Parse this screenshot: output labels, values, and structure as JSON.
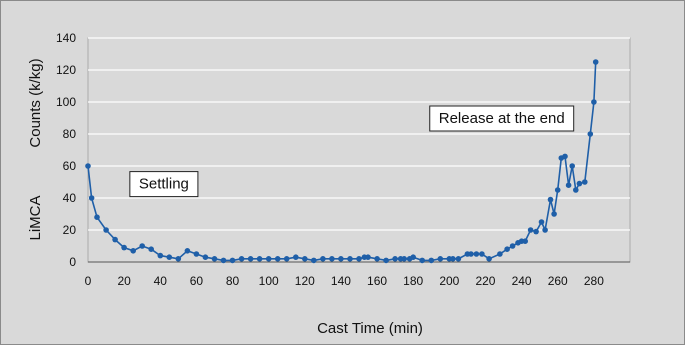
{
  "chart_data": {
    "type": "line",
    "title": "",
    "xlabel": "Cast Time (min)",
    "ylabel_left": "LiMCA",
    "ylabel_right": "Counts (k/kg)",
    "xlim": [
      0,
      300
    ],
    "ylim": [
      0,
      140
    ],
    "xticks": [
      "0",
      "20",
      "40",
      "60",
      "80",
      "100",
      "120",
      "140",
      "160",
      "180",
      "200",
      "220",
      "240",
      "260",
      "280"
    ],
    "yticks": [
      "0",
      "20",
      "40",
      "60",
      "80",
      "100",
      "120",
      "140"
    ],
    "grid": "horizontal",
    "colors": {
      "series": "#1f5fa8",
      "grid": "#ffffff",
      "plot_bg": "#d9d9d9"
    },
    "annotations": [
      {
        "text": "Settling",
        "x": 42,
        "y": 49
      },
      {
        "text": "Release at the end",
        "x": 229,
        "y": 90
      }
    ],
    "series": [
      {
        "name": "",
        "x": [
          0,
          2,
          5,
          10,
          15,
          20,
          25,
          30,
          35,
          40,
          45,
          50,
          55,
          60,
          65,
          70,
          75,
          80,
          85,
          90,
          95,
          100,
          105,
          110,
          115,
          120,
          125,
          130,
          135,
          140,
          145,
          150,
          153,
          155,
          160,
          165,
          170,
          173,
          175,
          178,
          180,
          185,
          190,
          195,
          200,
          202,
          205,
          210,
          212,
          215,
          218,
          222,
          228,
          232,
          235,
          238,
          240,
          242,
          245,
          248,
          251,
          253,
          256,
          258,
          260,
          262,
          264,
          266,
          268,
          270,
          272,
          275,
          278,
          280,
          281
        ],
        "y": [
          60,
          40,
          28,
          20,
          14,
          9,
          7,
          10,
          8,
          4,
          3,
          2,
          7,
          5,
          3,
          2,
          1,
          1,
          2,
          2,
          2,
          2,
          2,
          2,
          3,
          2,
          1,
          2,
          2,
          2,
          2,
          2,
          3,
          3,
          2,
          1,
          2,
          2,
          2,
          2,
          3,
          1,
          1,
          2,
          2,
          2,
          2,
          5,
          5,
          5,
          5,
          2,
          5,
          8,
          10,
          12,
          13,
          13,
          20,
          19,
          25,
          20,
          39,
          30,
          45,
          65,
          66,
          48,
          60,
          45,
          49,
          50,
          80,
          100,
          125
        ]
      }
    ]
  }
}
